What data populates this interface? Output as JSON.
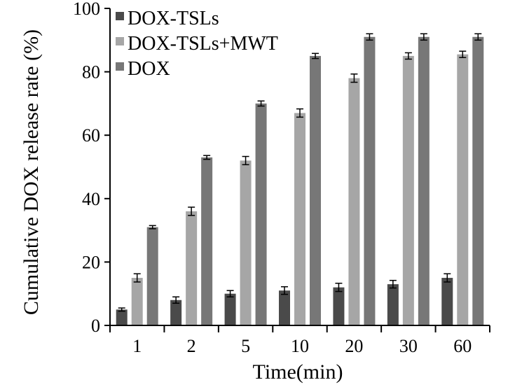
{
  "chart_data": {
    "type": "bar",
    "title": "",
    "xlabel": "Time(min)",
    "ylabel": "Cumulative DOX release rate (%)",
    "ylim": [
      0,
      100
    ],
    "yticks": [
      "0",
      "20",
      "40",
      "60",
      "80",
      "100"
    ],
    "categories": [
      "1",
      "2",
      "5",
      "10",
      "20",
      "30",
      "60"
    ],
    "series": [
      {
        "name": "DOX-TSLs",
        "color": "#4a4a4a",
        "values": [
          5,
          8,
          10,
          11,
          12,
          13,
          15
        ],
        "errors": [
          0.5,
          1,
          1,
          1.2,
          1.3,
          1.2,
          1.3
        ]
      },
      {
        "name": "DOX-TSLs+MWT",
        "color": "#a6a6a6",
        "values": [
          15,
          36,
          52,
          67,
          78,
          85,
          85.5
        ],
        "errors": [
          1.3,
          1.3,
          1.3,
          1.3,
          1.3,
          1,
          1
        ]
      },
      {
        "name": "DOX",
        "color": "#777777",
        "values": [
          31,
          53,
          70,
          85,
          91,
          91,
          91
        ],
        "errors": [
          0.5,
          0.6,
          0.8,
          0.8,
          1,
          1,
          1
        ]
      }
    ],
    "legend_position": "top-left",
    "grid": false
  }
}
